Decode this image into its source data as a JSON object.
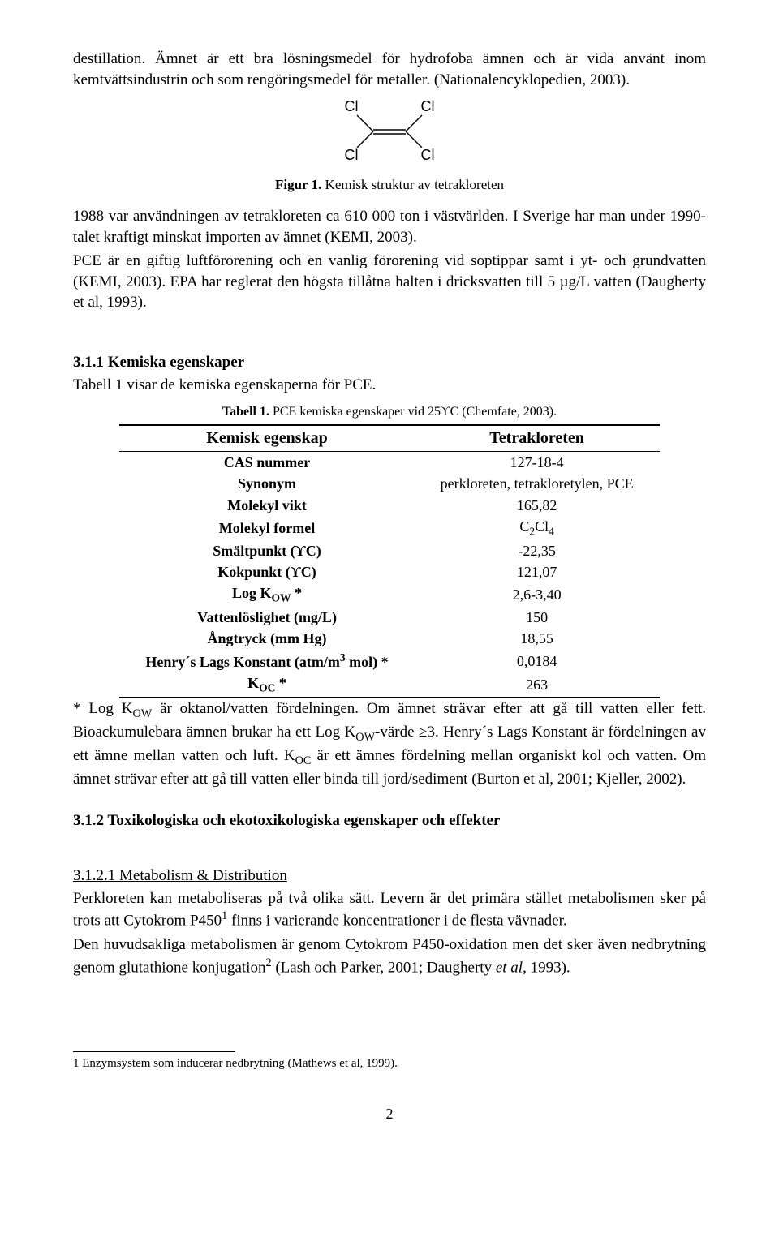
{
  "paragraphs": {
    "intro": "destillation. Ämnet är ett bra lösningsmedel för hydrofoba ämnen och är vida använt inom kemtvättsindustrin och som rengöringsmedel för metaller. (Nationalencyklopedien, 2003).",
    "usage": "1988 var användningen av tetrakloreten ca 610 000 ton i västvärlden. I Sverige har man under 1990-talet kraftigt minskat importen av ämnet (KEMI, 2003).",
    "pce": "PCE är en giftig luftförorening och en vanlig förorening vid soptippar samt i yt- och grundvatten (KEMI, 2003). EPA har reglerat den högsta tillåtna halten i dricksvatten till 5 µg/L vatten (Daugherty et al, 1993).",
    "kemprops_intro": "Tabell 1 visar de kemiska egenskaperna för PCE.",
    "footnote_star": "* Log KOW är oktanol/vatten fördelningen. Om ämnet strävar efter att gå till vatten eller fett. Bioackumulebara ämnen brukar ha ett Log KOW-värde ≥3. Henry´s Lags Konstant är fördelningen av ett ämne mellan vatten och luft. KOC är ett ämnes fördelning mellan organiskt kol och vatten. Om ämnet strävar efter att gå till vatten eller binda till jord/sediment (Burton et al, 2001; Kjeller, 2002).",
    "metab1": "Perkloreten kan metaboliseras på två olika sätt. Levern är det primära stället metabolismen sker på trots att Cytokrom P4501 finns i varierande koncentrationer i de flesta vävnader.",
    "metab2": "Den huvudsakliga metabolismen är genom Cytokrom P450-oxidation men det sker även nedbrytning genom glutathione konjugation2 (Lash och Parker, 2001; Daugherty et al, 1993)."
  },
  "figure": {
    "label_prefix": "Figur 1.",
    "label_rest": " Kemisk struktur av tetrakloreten",
    "atom": "Cl",
    "line_color": "#000000"
  },
  "sections": {
    "kemprops": "3.1.1 Kemiska egenskaper",
    "tox": "3.1.2 Toxikologiska och ekotoxikologiska egenskaper och effekter",
    "metab": "3.1.2.1 Metabolism & Distribution"
  },
  "table": {
    "caption_prefix": "Tabell 1.",
    "caption_rest": " PCE kemiska egenskaper vid 25ϒC (Chemfate, 2003).",
    "header_left": "Kemisk egenskap",
    "header_right": "Tetrakloreten",
    "rows": [
      {
        "label": "CAS nummer",
        "value": "127-18-4"
      },
      {
        "label": "Synonym",
        "value": "perkloreten, tetrakloretylen, PCE"
      },
      {
        "label": "Molekyl vikt",
        "value": "165,82"
      },
      {
        "label": "Molekyl formel",
        "value": "C2Cl4",
        "formula": true
      },
      {
        "label": "Smältpunkt (ϒC)",
        "value": "-22,35"
      },
      {
        "label": "Kokpunkt (ϒC)",
        "value": "121,07"
      },
      {
        "label": "Log KOW *",
        "sub": "OW",
        "value": "2,6-3,40"
      },
      {
        "label": "Vattenlöslighet (mg/L)",
        "value": "150"
      },
      {
        "label": "Ångtryck (mm Hg)",
        "value": "18,55"
      },
      {
        "label": "Henry´s Lags Konstant (atm/m3 mol) *",
        "sup": "3",
        "value": "0,0184"
      },
      {
        "label": "KOC *",
        "sub": "OC",
        "value": "263"
      }
    ]
  },
  "footnote": {
    "marker": "1",
    "text": " Enzymsystem som inducerar nedbrytning (Mathews et al, 1999)."
  },
  "pagenum": "2"
}
